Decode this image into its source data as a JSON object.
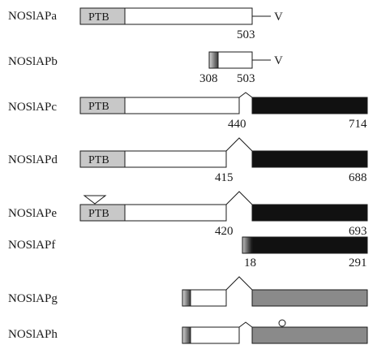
{
  "isoforms": [
    {
      "name": "NOSlAPa",
      "ptb_label": "PTB",
      "tail_label": "V",
      "numbers": [
        "503"
      ]
    },
    {
      "name": "NOSlAPb",
      "tail_label": "V",
      "numbers": [
        "308",
        "503"
      ]
    },
    {
      "name": "NOSlAPc",
      "ptb_label": "PTB",
      "numbers": [
        "440",
        "714"
      ]
    },
    {
      "name": "NOSlAPd",
      "ptb_label": "PTB",
      "numbers": [
        "415",
        "688"
      ]
    },
    {
      "name": "NOSlAPe",
      "ptb_label": "PTB",
      "numbers": [
        "420",
        "693"
      ]
    },
    {
      "name": "NOSlAPf",
      "numbers": [
        "18",
        "291"
      ]
    },
    {
      "name": "NOSlAPg"
    },
    {
      "name": "NOSlAPh"
    }
  ],
  "colors": {
    "outline": "#1a1a1a",
    "ptb_fill": "#c8c8c8",
    "white_fill": "#ffffff",
    "black_fill": "#111111",
    "gray_fill": "#8a8a8a"
  }
}
